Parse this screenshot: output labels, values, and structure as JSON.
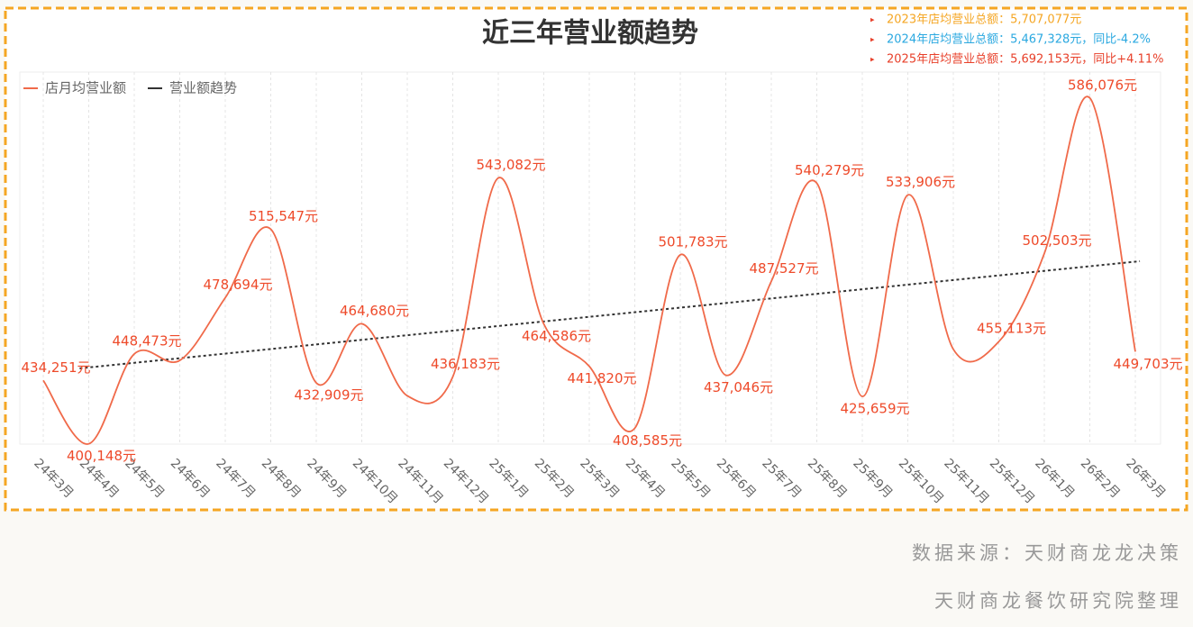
{
  "chart_data": {
    "type": "line",
    "title": "近三年营业额趋势",
    "annotations": [
      {
        "text": "2023年店均营业总额：5,707,077元",
        "color": "#f5a623"
      },
      {
        "text": "2024年店均营业总额：5,467,328元，同比-4.2%",
        "color": "#2aa8e0"
      },
      {
        "text": "2025年店均营业总额：5,692,153元，同比+4.11%",
        "color": "#e8402a"
      }
    ],
    "series_name": "店月均营业额",
    "color": "#f06a4a",
    "trend_name": "营业额趋势",
    "trend_color": "#333333",
    "categories": [
      "24年3月",
      "24年4月",
      "24年5月",
      "24年6月",
      "24年7月",
      "24年8月",
      "24年9月",
      "24年10月",
      "24年11月",
      "24年12月",
      "25年1月",
      "25年2月",
      "25年3月",
      "25年4月",
      "25年5月",
      "25年6月",
      "25年7月",
      "25年8月",
      "25年9月",
      "25年10月",
      "25年11月",
      "25年12月",
      "26年1月",
      "26年2月",
      "26年3月"
    ],
    "values": [
      434251,
      400148,
      448473,
      445000,
      478694,
      515547,
      432909,
      464680,
      426000,
      436183,
      543082,
      464586,
      441820,
      408585,
      501783,
      437046,
      487527,
      540279,
      425659,
      533906,
      451000,
      455113,
      502503,
      586076,
      449703
    ],
    "value_labels": [
      "434,251元",
      "400,148元",
      "448,473元",
      null,
      "478,694元",
      "515,547元",
      "432,909元",
      "464,680元",
      null,
      "436,183元",
      "543,082元",
      "464,586元",
      "441,820元",
      "408,585元",
      "501,783元",
      "437,046元",
      "487,527元",
      "540,279元",
      "425,659元",
      "533,906元",
      null,
      "455,113元",
      "502,503元",
      "586,076元",
      "449,703元"
    ],
    "ylim": [
      400000,
      600000
    ],
    "grid": true,
    "sources": [
      "数据来源：天财商龙龙决策",
      "天财商龙餐饮研究院整理"
    ]
  }
}
